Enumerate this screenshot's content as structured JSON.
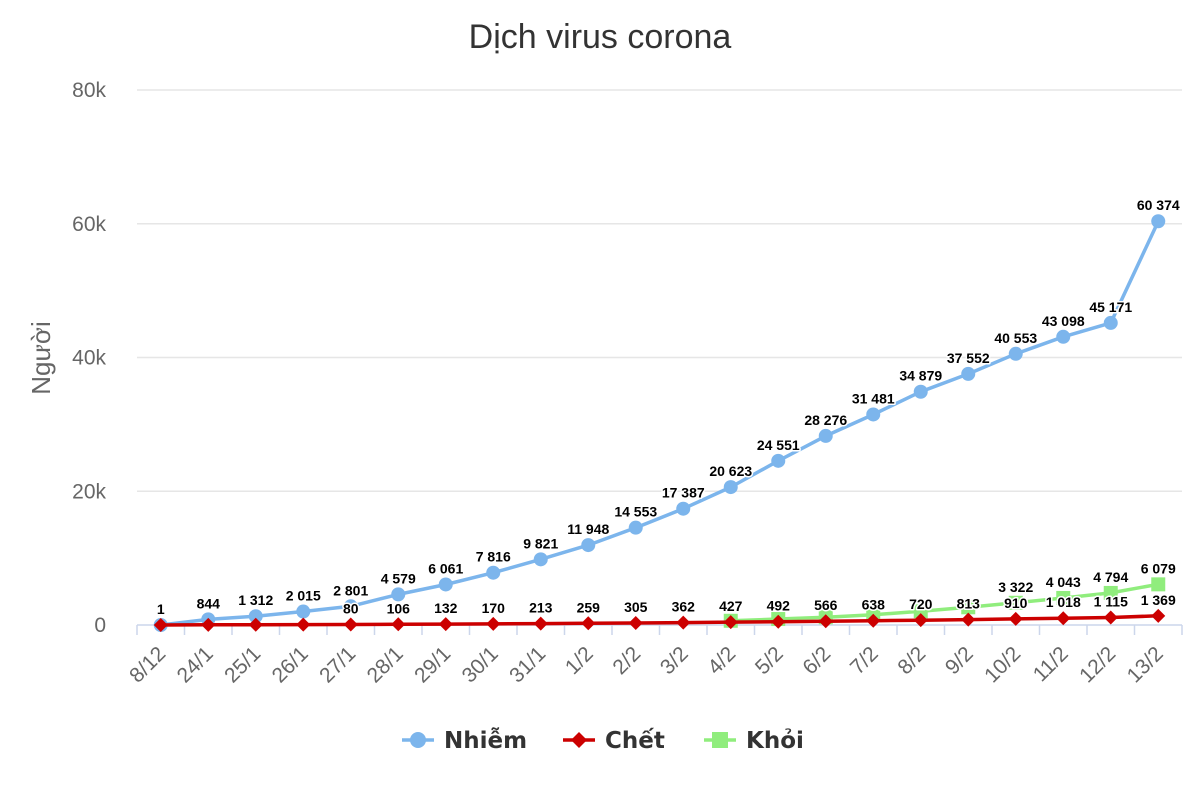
{
  "chart_data": {
    "type": "line",
    "title": "Dịch virus corona",
    "ylabel": "Người",
    "xlabel": "",
    "ylim": [
      0,
      80000
    ],
    "y_ticks": [
      0,
      20000,
      40000,
      60000,
      80000
    ],
    "y_tick_labels": [
      "0",
      "20k",
      "40k",
      "60k",
      "80k"
    ],
    "grid": true,
    "legend_position": "bottom",
    "categories": [
      "8/12",
      "24/1",
      "25/1",
      "26/1",
      "27/1",
      "28/1",
      "29/1",
      "30/1",
      "31/1",
      "1/2",
      "2/2",
      "3/2",
      "4/2",
      "5/2",
      "6/2",
      "7/2",
      "8/2",
      "9/2",
      "10/2",
      "11/2",
      "12/2",
      "13/2"
    ],
    "series": [
      {
        "name": "Nhiễm",
        "color": "#7cb5ec",
        "marker": "circle",
        "values": [
          1,
          844,
          1312,
          2015,
          2801,
          4579,
          6061,
          7816,
          9821,
          11948,
          14553,
          17387,
          20623,
          24551,
          28276,
          31481,
          34879,
          37552,
          40553,
          43098,
          45171,
          60374
        ],
        "labels": [
          "1",
          "844",
          "1 312",
          "2 015",
          "2 801",
          "4 579",
          "6 061",
          "7 816",
          "9 821",
          "11 948",
          "14 553",
          "17 387",
          "20 623",
          "24 551",
          "28 276",
          "31 481",
          "34 879",
          "37 552",
          "40 553",
          "43 098",
          "45 171",
          "60 374"
        ]
      },
      {
        "name": "Chết",
        "color": "#cc0000",
        "marker": "diamond",
        "values": [
          0,
          26,
          41,
          56,
          80,
          106,
          132,
          170,
          213,
          259,
          305,
          362,
          427,
          492,
          566,
          638,
          720,
          813,
          910,
          1018,
          1115,
          1369
        ],
        "labels": [
          "",
          "",
          "",
          "",
          "80",
          "106",
          "132",
          "170",
          "213",
          "259",
          "305",
          "362",
          "427",
          "492",
          "566",
          "638",
          "720",
          "813",
          "910",
          "1 018",
          "1 115",
          "1 369"
        ]
      },
      {
        "name": "Khỏi",
        "color": "#90ed7d",
        "marker": "square",
        "start_index": 12,
        "values": [
          null,
          null,
          null,
          null,
          null,
          null,
          null,
          null,
          null,
          null,
          null,
          null,
          632,
          892,
          1153,
          1540,
          2050,
          2649,
          3322,
          4043,
          4794,
          6079
        ],
        "labels": [
          "",
          "",
          "",
          "",
          "",
          "",
          "",
          "",
          "",
          "",
          "",
          "",
          "",
          "",
          "",
          "",
          "",
          "",
          "3 322",
          "4 043",
          "4 794",
          "6 079"
        ]
      }
    ]
  }
}
